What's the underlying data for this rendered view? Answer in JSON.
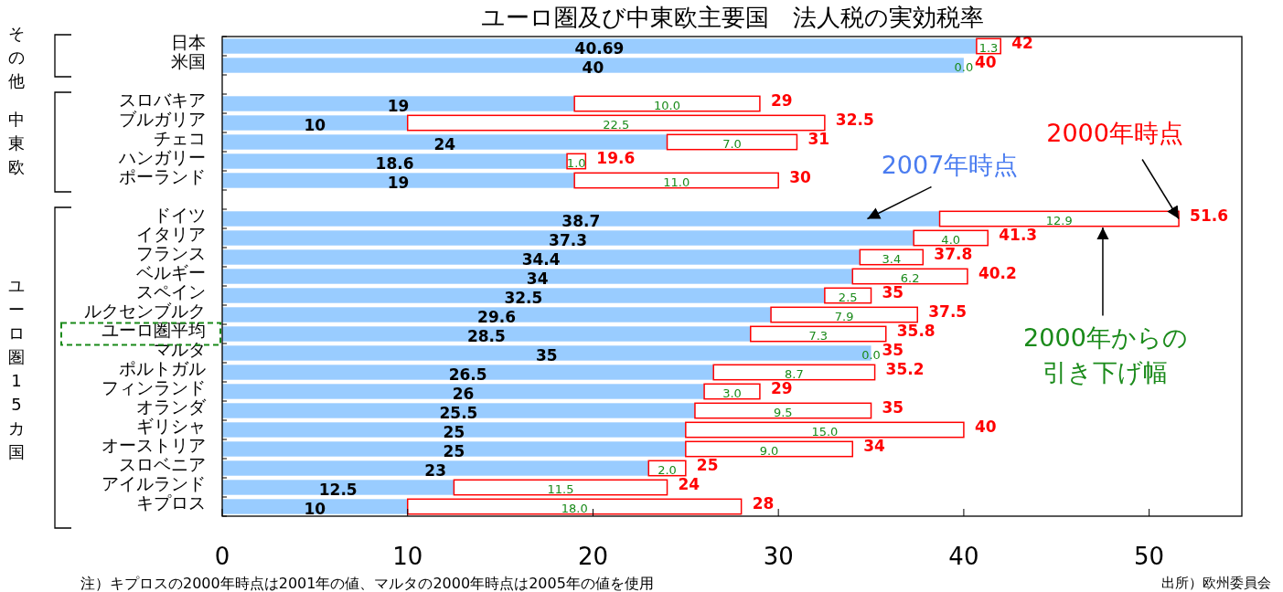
{
  "chart_data": {
    "type": "bar",
    "orientation": "horizontal",
    "stacked": true,
    "title": "ユーロ圏及び中東欧主要国　法人税の実効税率",
    "categories": [
      "日本",
      "米国",
      null,
      "スロバキア",
      "ブルガリア",
      "チェコ",
      "ハンガリー",
      "ポーランド",
      null,
      "ドイツ",
      "イタリア",
      "フランス",
      "ベルギー",
      "スペイン",
      "ルクセンブルク",
      "ユーロ圏平均",
      "マルタ",
      "ポルトガル",
      "フィンランド",
      "オランダ",
      "ギリシャ",
      "オーストリア",
      "スロベニア",
      "アイルランド",
      "キプロス"
    ],
    "series": [
      {
        "color": "#99ccff",
        "values": [
          40.69,
          40,
          null,
          19,
          10,
          24,
          18.6,
          19,
          null,
          38.7,
          37.3,
          34.4,
          34,
          32.5,
          29.6,
          28.5,
          35,
          26.5,
          26,
          25.5,
          25,
          25,
          23,
          12.5,
          10
        ],
        "value_labels": [
          "40.69",
          "40",
          null,
          "19",
          "10",
          "24",
          "18.6",
          "19",
          null,
          "38.7",
          "37.3",
          "34.4",
          "34",
          "32.5",
          "29.6",
          "28.5",
          "35",
          "26.5",
          "26",
          "25.5",
          "25",
          "25",
          "23",
          "12.5",
          "10"
        ]
      },
      {
        "color": "#ff0000",
        "values": [
          1.3,
          0,
          null,
          10,
          22.5,
          7,
          1,
          11,
          null,
          12.9,
          4,
          3.4,
          6.2,
          2.5,
          7.9,
          7.3,
          0,
          8.7,
          3,
          9.5,
          15,
          9,
          2,
          11.5,
          18
        ],
        "value_labels": [
          "1.3",
          "0.0",
          null,
          "10.0",
          "22.5",
          "7.0",
          "1.0",
          "11.0",
          null,
          "12.9",
          "4.0",
          "3.4",
          "6.2",
          "2.5",
          "7.9",
          "7.3",
          "0.0",
          "8.7",
          "3.0",
          "9.5",
          "15.0",
          "9.0",
          "2.0",
          "11.5",
          "18.0"
        ]
      }
    ],
    "totals": [
      "42",
      "40",
      null,
      "29",
      "32.5",
      "31",
      "19.6",
      "30",
      null,
      "51.6",
      "41.3",
      "37.8",
      "40.2",
      "35",
      "37.5",
      "35.8",
      "35",
      "35.2",
      "29",
      "35",
      "40",
      "34",
      "25",
      "24",
      "28"
    ],
    "xlim": [
      0,
      55
    ],
    "xticks": [
      0,
      10,
      20,
      30,
      40,
      50
    ],
    "grid": false,
    "annotations": [
      "その他",
      "中東欧",
      "ユーロ圏15カ国",
      {
        "text": "2007年時点",
        "x": 34.8,
        "y": "ドイツ"
      },
      {
        "text": "2000年時点",
        "x": 51.6,
        "y": "ドイツ"
      },
      {
        "text": "2000年からの引き下げ幅",
        "x": 47.5,
        "y": "ドイツ"
      },
      "注）キプロスの2000年時点は2001年の値、マルタの2000年時点は2005年の値を使用",
      "出所）欧州委員会"
    ]
  }
}
